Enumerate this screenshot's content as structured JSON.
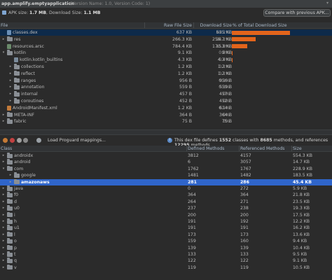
{
  "app": {
    "title": "app.amplify.emptyapplication",
    "version_info": "(Version Name: 1.0, Version Code: 1)",
    "apk_size_label": "APK size:",
    "apk_size_value": "1.7 MB",
    "download_size_label": ", Download Size:",
    "download_size_value": "1.1 MB",
    "compare_button": "Compare with previous APK..."
  },
  "file_table": {
    "columns": [
      "File",
      "Raw File Size",
      "Download Size",
      "% of Total Download Size"
    ],
    "rows": [
      {
        "name": "classes.dex",
        "raw": "637 KB",
        "dl": "635 KB",
        "pct": "59.1%",
        "pct_value": 59.1,
        "depth": 0,
        "arrow": "",
        "icon": "dex"
      },
      {
        "name": "res",
        "raw": "266.3 KB",
        "dl": "258.7 KB",
        "pct": "24.1%",
        "pct_value": 24.1,
        "depth": 0,
        "arrow": "▸",
        "icon": "folder"
      },
      {
        "name": "resources.arsc",
        "raw": "784.4 KB",
        "dl": "170.3 KB",
        "pct": "15.8%",
        "pct_value": 15.8,
        "depth": 0,
        "arrow": "",
        "icon": "arsc"
      },
      {
        "name": "kotlin",
        "raw": "9.1 KB",
        "dl": "9 KB",
        "pct": "0.8%",
        "pct_value": 0.8,
        "depth": 0,
        "arrow": "▾",
        "icon": "folder"
      },
      {
        "name": "kotlin.kotlin_builtins",
        "raw": "4.3 KB",
        "dl": "4.3 KB",
        "pct": "0.4%",
        "pct_value": 0.4,
        "depth": 1,
        "arrow": "",
        "icon": "file"
      },
      {
        "name": "collections",
        "raw": "1.2 KB",
        "dl": "1.2 KB",
        "pct": "0.1%",
        "pct_value": 0.1,
        "depth": 1,
        "arrow": "▸",
        "icon": "folder"
      },
      {
        "name": "reflect",
        "raw": "1.2 KB",
        "dl": "1.2 KB",
        "pct": "0.1%",
        "pct_value": 0.1,
        "depth": 1,
        "arrow": "▸",
        "icon": "folder"
      },
      {
        "name": "ranges",
        "raw": "956 B",
        "dl": "956 B",
        "pct": "0.1%",
        "pct_value": 0.1,
        "depth": 1,
        "arrow": "▸",
        "icon": "folder"
      },
      {
        "name": "annotation",
        "raw": "559 B",
        "dl": "559 B",
        "pct": "0.1%",
        "pct_value": 0.1,
        "depth": 1,
        "arrow": "▸",
        "icon": "folder"
      },
      {
        "name": "internal",
        "raw": "457 B",
        "dl": "457 B",
        "pct": "0%",
        "pct_value": 0,
        "depth": 1,
        "arrow": "▸",
        "icon": "folder"
      },
      {
        "name": "coroutines",
        "raw": "452 B",
        "dl": "452 B",
        "pct": "0%",
        "pct_value": 0,
        "depth": 1,
        "arrow": "▸",
        "icon": "folder"
      },
      {
        "name": "AndroidManifest.xml",
        "raw": "1.2 KB",
        "dl": "614 B",
        "pct": "0.1%",
        "pct_value": 0.1,
        "depth": 0,
        "arrow": "",
        "icon": "xml"
      },
      {
        "name": "META-INF",
        "raw": "364 B",
        "dl": "364 B",
        "pct": "0%",
        "pct_value": 0,
        "depth": 0,
        "arrow": "▸",
        "icon": "folder"
      },
      {
        "name": "fabric",
        "raw": "75 B",
        "dl": "75 B",
        "pct": "0%",
        "pct_value": 0,
        "depth": 0,
        "arrow": "▸",
        "icon": "folder"
      }
    ]
  },
  "dex_toolbar": {
    "load_proguard": "Load Proguard mappings...",
    "info_prefix": "This dex file defines",
    "classes_count": "1552",
    "classes_word": "classes with",
    "methods_count": "8685",
    "methods_word": "methods, and references",
    "ref_count": "12295",
    "ref_word": "methods"
  },
  "class_table": {
    "columns": [
      "Class",
      "Defined Methods",
      "Referenced Methods",
      "Size"
    ],
    "rows": [
      {
        "name": "androidx",
        "def": "3812",
        "ref": "4157",
        "size": "554.3 KB",
        "depth": 0,
        "arrow": "▸"
      },
      {
        "name": "android",
        "def": "6",
        "ref": "3057",
        "size": "14.7 KB",
        "depth": 0,
        "arrow": "▸"
      },
      {
        "name": "com",
        "def": "1762",
        "ref": "1767",
        "size": "228.9 KB",
        "depth": 0,
        "arrow": "▾"
      },
      {
        "name": "google",
        "def": "1481",
        "ref": "1482",
        "size": "183.5 KB",
        "depth": 1,
        "arrow": "▸"
      },
      {
        "name": "amazonaws",
        "def": "281",
        "ref": "286",
        "size": "45.4 KB",
        "depth": 1,
        "arrow": "▸"
      },
      {
        "name": "java",
        "def": "0",
        "ref": "272",
        "size": "5.9 KB",
        "depth": 0,
        "arrow": "▸"
      },
      {
        "name": "f0",
        "def": "364",
        "ref": "364",
        "size": "21.8 KB",
        "depth": 0,
        "arrow": "▸"
      },
      {
        "name": "d",
        "def": "264",
        "ref": "271",
        "size": "23.5 KB",
        "depth": 0,
        "arrow": "▸"
      },
      {
        "name": "u0",
        "def": "237",
        "ref": "238",
        "size": "19.3 KB",
        "depth": 0,
        "arrow": "▸"
      },
      {
        "name": "i",
        "def": "200",
        "ref": "200",
        "size": "17.5 KB",
        "depth": 0,
        "arrow": "▸"
      },
      {
        "name": "h",
        "def": "191",
        "ref": "192",
        "size": "12.2 KB",
        "depth": 0,
        "arrow": "▸"
      },
      {
        "name": "u1",
        "def": "191",
        "ref": "191",
        "size": "16.2 KB",
        "depth": 0,
        "arrow": "▸"
      },
      {
        "name": "l",
        "def": "173",
        "ref": "173",
        "size": "13.6 KB",
        "depth": 0,
        "arrow": "▸"
      },
      {
        "name": "o",
        "def": "159",
        "ref": "160",
        "size": "9.4 KB",
        "depth": 0,
        "arrow": "▸"
      },
      {
        "name": "p",
        "def": "139",
        "ref": "139",
        "size": "10.4 KB",
        "depth": 0,
        "arrow": "▸"
      },
      {
        "name": "t",
        "def": "133",
        "ref": "133",
        "size": "9.5 KB",
        "depth": 0,
        "arrow": "▸"
      },
      {
        "name": "q",
        "def": "122",
        "ref": "122",
        "size": "9.1 KB",
        "depth": 0,
        "arrow": "▸"
      },
      {
        "name": "v",
        "def": "119",
        "ref": "119",
        "size": "10.5 KB",
        "depth": 0,
        "arrow": "▸"
      }
    ]
  },
  "colors": {
    "bar": "#e2641b",
    "selection": "#2f65ca",
    "background": "#2b2b2b"
  }
}
